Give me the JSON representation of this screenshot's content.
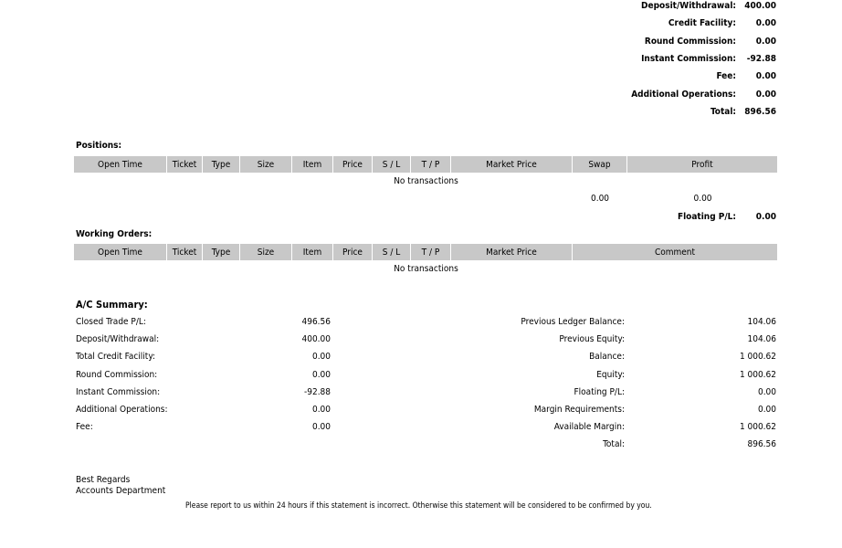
{
  "top_summary": [
    {
      "label": "Deposit/Withdrawal:",
      "value": "400.00"
    },
    {
      "label": "Credit Facility:",
      "value": "0.00"
    },
    {
      "label": "Round Commission:",
      "value": "0.00"
    },
    {
      "label": "Instant Commission:",
      "value": "-92.88"
    },
    {
      "label": "Fee:",
      "value": "0.00"
    },
    {
      "label": "Additional Operations:",
      "value": "0.00"
    },
    {
      "label": "Total:",
      "value": "896.56"
    }
  ],
  "positions": {
    "title": "Positions:",
    "columns": [
      "Open Time",
      "Ticket",
      "Type",
      "Size",
      "Item",
      "Price",
      "S / L",
      "T / P",
      "Market Price",
      "Swap",
      "Profit"
    ],
    "empty_text": "No transactions",
    "swap_total": "0.00",
    "profit_total": "0.00",
    "floating_label": "Floating P/L:",
    "floating_value": "0.00"
  },
  "working_orders": {
    "title": "Working Orders:",
    "columns": [
      "Open Time",
      "Ticket",
      "Type",
      "Size",
      "Item",
      "Price",
      "S / L",
      "T / P",
      "Market Price",
      "Comment"
    ],
    "empty_text": "No transactions"
  },
  "ac_summary": {
    "title": "A/C Summary:",
    "left": [
      {
        "label": "Closed Trade P/L:",
        "value": "496.56"
      },
      {
        "label": "Deposit/Withdrawal:",
        "value": "400.00"
      },
      {
        "label": "Total Credit Facility:",
        "value": "0.00"
      },
      {
        "label": "Round Commission:",
        "value": "0.00"
      },
      {
        "label": "Instant Commission:",
        "value": "-92.88"
      },
      {
        "label": "Additional Operations:",
        "value": "0.00"
      },
      {
        "label": "Fee:",
        "value": "0.00"
      }
    ],
    "right": [
      {
        "label": "Previous Ledger Balance:",
        "value": "104.06"
      },
      {
        "label": "Previous Equity:",
        "value": "104.06"
      },
      {
        "label": "Balance:",
        "value": "1 000.62"
      },
      {
        "label": "Equity:",
        "value": "1 000.62"
      },
      {
        "label": "Floating P/L:",
        "value": "0.00"
      },
      {
        "label": "Margin Requirements:",
        "value": "0.00"
      },
      {
        "label": "Available Margin:",
        "value": "1 000.62"
      },
      {
        "label": "Total:",
        "value": "896.56"
      }
    ]
  },
  "footer": {
    "regards": "Best Regards",
    "department": "Accounts Department",
    "notice": "Please report to us within 24 hours if this statement is incorrect. Otherwise this statement will be considered to be confirmed by you."
  }
}
